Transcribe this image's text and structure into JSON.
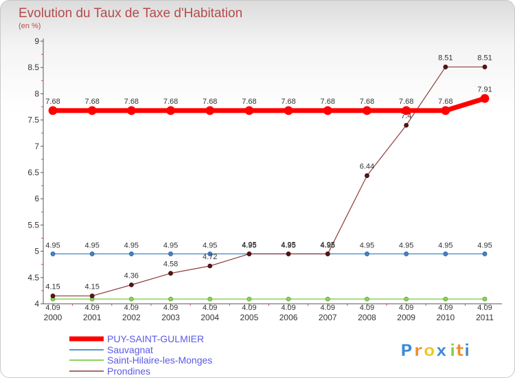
{
  "chart_data": {
    "type": "line",
    "title": "Evolution du Taux de Taxe d'Habitation",
    "ylabel": "(en %)",
    "xlabel": "",
    "categories": [
      "2000",
      "2001",
      "2002",
      "2003",
      "2004",
      "2005",
      "2006",
      "2007",
      "2008",
      "2009",
      "2010",
      "2011"
    ],
    "yticks": [
      "4",
      "4.5",
      "5",
      "5.5",
      "6",
      "6.5",
      "7",
      "7.5",
      "8",
      "8.5",
      "9"
    ],
    "ylim": [
      4,
      9
    ],
    "grid": false,
    "legend_position": "bottom-left",
    "series": [
      {
        "name": "PUY-SAINT-GULMIER",
        "color": "#ff0000",
        "values": [
          7.68,
          7.68,
          7.68,
          7.68,
          7.68,
          7.68,
          7.68,
          7.68,
          7.68,
          7.68,
          7.68,
          7.91
        ],
        "labels": [
          "7.68",
          "7.68",
          "7.68",
          "7.68",
          "7.68",
          "7.68",
          "7.68",
          "7.68",
          "7.68",
          "7.68",
          "7.68",
          "7.91"
        ]
      },
      {
        "name": "Sauvagnat",
        "color": "#5a96c8",
        "values": [
          4.95,
          4.95,
          4.95,
          4.95,
          4.95,
          4.95,
          4.95,
          4.95,
          4.95,
          4.95,
          4.95,
          4.95
        ],
        "labels": [
          "4.95",
          "4.95",
          "4.95",
          "4.95",
          "4.95",
          "4.95",
          "4.95",
          "4.95",
          "4.95",
          "4.95",
          "4.95",
          "4.95"
        ]
      },
      {
        "name": "Saint-Hilaire-les-Monges",
        "color": "#8cd25a",
        "values": [
          4.09,
          4.09,
          4.09,
          4.09,
          4.09,
          4.09,
          4.09,
          4.09,
          4.09,
          4.09,
          4.09,
          4.09
        ],
        "labels": [
          "4.09",
          "4.09",
          "4.09",
          "4.09",
          "4.09",
          "4.09",
          "4.09",
          "4.09",
          "4.09",
          "4.09",
          "4.09",
          "4.09"
        ]
      },
      {
        "name": "Prondines",
        "color": "#8c3c3c",
        "values": [
          4.15,
          4.15,
          4.36,
          4.58,
          4.72,
          4.95,
          4.95,
          4.95,
          6.44,
          7.4,
          8.51,
          8.51
        ],
        "labels": [
          "4.15",
          "4.15",
          "4.36",
          "4.58",
          "4.72",
          "4.95",
          "4.95",
          "4.95",
          "6.44",
          "7.4",
          "8.51",
          "8.51"
        ]
      }
    ]
  },
  "brand": {
    "letters": [
      "P",
      "r",
      "o",
      "x",
      "i",
      "t",
      "i"
    ],
    "colors": [
      "#3c8cd2",
      "#f08c28",
      "#f0c828",
      "#3c8cd2",
      "#8cc83c",
      "#f08c28",
      "#3c8cd2"
    ]
  }
}
